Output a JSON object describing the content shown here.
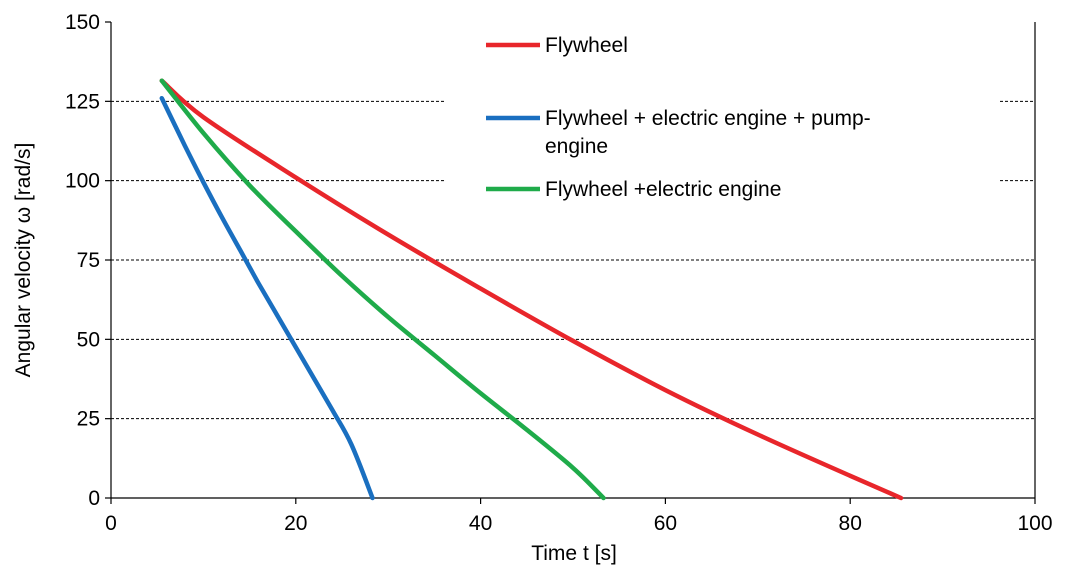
{
  "chart_data": {
    "type": "line",
    "xlabel": "Time t [s]",
    "ylabel": "Angular velocity ω [rad/s]",
    "xlim": [
      0,
      100
    ],
    "ylim": [
      0,
      150
    ],
    "xticks": [
      "0",
      "20",
      "40",
      "60",
      "80",
      "100"
    ],
    "yticks": [
      "0",
      "25",
      "50",
      "75",
      "100",
      "125",
      "150"
    ],
    "grid": "horizontal-dashed",
    "legend_position": "top-right",
    "series": [
      {
        "name": "Flywheel",
        "color": "#e8262b",
        "x": [
          5.5,
          10,
          20,
          30,
          40,
          50,
          60,
          70,
          80,
          85.5
        ],
        "y": [
          131.5,
          120,
          101,
          83,
          66,
          49.5,
          34,
          20,
          7,
          0
        ]
      },
      {
        "name": "Flywheel + electric engine + pump-engine",
        "color": "#1a6fc0",
        "x": [
          5.5,
          8,
          10,
          12,
          14,
          16,
          18,
          20,
          22,
          24,
          26,
          28.3
        ],
        "y": [
          126,
          111,
          99.5,
          88.5,
          78,
          67.5,
          57.5,
          47.5,
          37.5,
          27.5,
          17,
          0
        ]
      },
      {
        "name": "Flywheel +electric engine",
        "color": "#1fab4a",
        "x": [
          5.5,
          10,
          15,
          20,
          25,
          30,
          35,
          40,
          45,
          50,
          53.3
        ],
        "y": [
          131.5,
          115,
          98.5,
          84,
          70,
          57,
          45,
          33,
          21.5,
          9.5,
          0
        ]
      }
    ]
  }
}
